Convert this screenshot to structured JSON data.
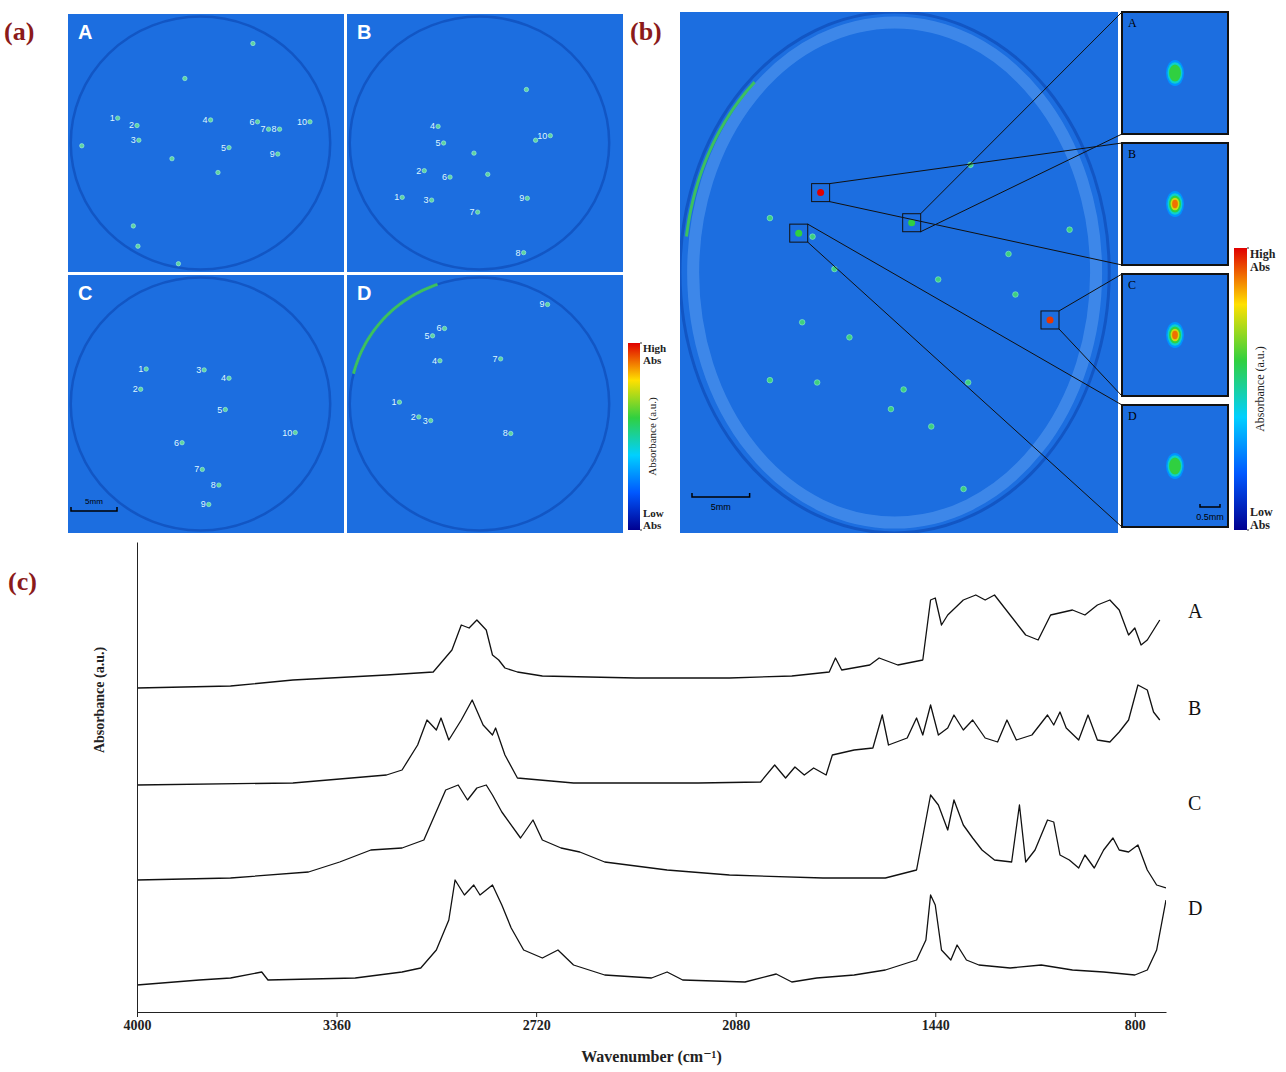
{
  "chart_data": [
    {
      "type": "particle_map",
      "panel": "(a)",
      "xlim": [
        0,
        30
      ],
      "ylim": [
        0,
        28
      ],
      "maps": [
        {
          "label": "A",
          "particles": [
            {
              "label": "1",
              "x": 5.4,
              "y": 11.3
            },
            {
              "label": "2",
              "x": 7.5,
              "y": 12.1
            },
            {
              "label": "3",
              "x": 7.7,
              "y": 13.7
            },
            {
              "label": "4",
              "x": 15.5,
              "y": 11.5
            },
            {
              "label": "5",
              "x": 17.5,
              "y": 14.5
            },
            {
              "label": "6",
              "x": 20.6,
              "y": 11.7
            },
            {
              "label": "7",
              "x": 21.8,
              "y": 12.5
            },
            {
              "label": "8",
              "x": 23,
              "y": 12.5
            },
            {
              "label": "9",
              "x": 22.8,
              "y": 15.2
            },
            {
              "label": "10",
              "x": 26.3,
              "y": 11.7
            },
            {
              "label": null,
              "x": 20.1,
              "y": 3.2
            },
            {
              "label": null,
              "x": 12.7,
              "y": 7
            },
            {
              "label": null,
              "x": 1.5,
              "y": 14.3
            },
            {
              "label": null,
              "x": 11.3,
              "y": 15.7
            },
            {
              "label": null,
              "x": 16.3,
              "y": 17.2
            },
            {
              "label": null,
              "x": 7.1,
              "y": 23
            },
            {
              "label": null,
              "x": 7.6,
              "y": 25.2
            },
            {
              "label": null,
              "x": 12,
              "y": 27.1
            }
          ]
        },
        {
          "label": "B",
          "particles": [
            {
              "label": "1",
              "x": 6,
              "y": 19.9
            },
            {
              "label": "2",
              "x": 8.4,
              "y": 17
            },
            {
              "label": "3",
              "x": 9.2,
              "y": 20.2
            },
            {
              "label": "4",
              "x": 9.9,
              "y": 12.2
            },
            {
              "label": "5",
              "x": 10.5,
              "y": 14
            },
            {
              "label": "6",
              "x": 11.2,
              "y": 17.7
            },
            {
              "label": "7",
              "x": 14.2,
              "y": 21.5
            },
            {
              "label": "8",
              "x": 19.2,
              "y": 25.9
            },
            {
              "label": "9",
              "x": 19.6,
              "y": 20
            },
            {
              "label": "10",
              "x": 22.1,
              "y": 13.2
            },
            {
              "label": null,
              "x": 19.5,
              "y": 8.2
            },
            {
              "label": null,
              "x": 13.8,
              "y": 15.1
            },
            {
              "label": null,
              "x": 15.3,
              "y": 17.4
            },
            {
              "label": null,
              "x": 20.5,
              "y": 13.7
            }
          ]
        },
        {
          "label": "C",
          "particles": [
            {
              "label": "1",
              "x": 8.5,
              "y": 10.2
            },
            {
              "label": "2",
              "x": 7.9,
              "y": 12.4
            },
            {
              "label": "3",
              "x": 14.8,
              "y": 10.3
            },
            {
              "label": "4",
              "x": 17.5,
              "y": 11.2
            },
            {
              "label": "5",
              "x": 17.1,
              "y": 14.6
            },
            {
              "label": "6",
              "x": 12.4,
              "y": 18.2
            },
            {
              "label": "7",
              "x": 14.6,
              "y": 21.1
            },
            {
              "label": "8",
              "x": 16.4,
              "y": 22.8
            },
            {
              "label": "9",
              "x": 15.3,
              "y": 24.9
            },
            {
              "label": "10",
              "x": 24.7,
              "y": 17.1
            }
          ]
        },
        {
          "label": "D",
          "particles": [
            {
              "label": "1",
              "x": 5.7,
              "y": 13.8
            },
            {
              "label": "2",
              "x": 7.8,
              "y": 15.4
            },
            {
              "label": "3",
              "x": 9.1,
              "y": 15.8
            },
            {
              "label": "4",
              "x": 10.1,
              "y": 9.3
            },
            {
              "label": "5",
              "x": 9.3,
              "y": 6.6
            },
            {
              "label": "6",
              "x": 10.6,
              "y": 5.8
            },
            {
              "label": "7",
              "x": 16.7,
              "y": 9.1
            },
            {
              "label": "8",
              "x": 17.8,
              "y": 17.2
            },
            {
              "label": "9",
              "x": 21.8,
              "y": 3.2
            }
          ]
        }
      ],
      "scale_bar": {
        "value": 5,
        "label": "5mm"
      },
      "colorbar": {
        "title": "Absorbance (a.u.)",
        "range": [
          0,
          1
        ],
        "ticks": [
          {
            "value": 1,
            "label": "High Abs"
          },
          {
            "value": 0,
            "label": "Low Abs"
          }
        ]
      }
    },
    {
      "type": "particle_map",
      "panel": "(b)",
      "xlim": [
        0,
        38
      ],
      "ylim": [
        0,
        45
      ],
      "particles": [
        {
          "x": 7.8,
          "y": 17.8
        },
        {
          "x": 11.5,
          "y": 19.4
        },
        {
          "x": 13.4,
          "y": 22.2
        },
        {
          "x": 10.6,
          "y": 26.8
        },
        {
          "x": 14.7,
          "y": 28.1
        },
        {
          "x": 7.8,
          "y": 31.8
        },
        {
          "x": 11.9,
          "y": 32
        },
        {
          "x": 18.3,
          "y": 34.3
        },
        {
          "x": 21.8,
          "y": 35.8
        },
        {
          "x": 25,
          "y": 32
        },
        {
          "x": 29.1,
          "y": 24.4
        },
        {
          "x": 28.5,
          "y": 20.9
        },
        {
          "x": 22.4,
          "y": 23.1
        },
        {
          "x": 25.2,
          "y": 13.2
        },
        {
          "x": 33.8,
          "y": 18.8
        },
        {
          "x": 24.6,
          "y": 41.2
        },
        {
          "x": 19.4,
          "y": 32.6
        }
      ],
      "insets": [
        {
          "label": "A",
          "x": 20.1,
          "y": 18.2,
          "abs": 0.6
        },
        {
          "label": "B",
          "x": 12.2,
          "y": 15.6,
          "abs": 1
        },
        {
          "label": "C",
          "x": 32.1,
          "y": 26.6,
          "abs": 0.95
        },
        {
          "label": "D",
          "x": 10.3,
          "y": 19.1,
          "abs": 0.6
        }
      ],
      "scale_bar": {
        "value": 5,
        "label": "5mm"
      },
      "inset_scale_bar": {
        "value": 0.5,
        "label": "0.5mm"
      },
      "colorbar": {
        "title": "Absorbance (a.u.)",
        "range": [
          0,
          1
        ],
        "ticks": [
          {
            "value": 1,
            "label": "High Abs"
          },
          {
            "value": 0,
            "label": "Low Abs"
          }
        ]
      }
    },
    {
      "type": "line",
      "panel": "(c)",
      "xlabel": "Wavenumber (cm⁻¹)",
      "ylabel": "Absorbance (a.u.)",
      "xlim": [
        4000,
        700
      ],
      "ylim": [
        0,
        470
      ],
      "xticks": [
        4000,
        3360,
        2720,
        2080,
        1440,
        800
      ],
      "tick_labels": "x",
      "series": [
        {
          "name": "A",
          "color": "#111111",
          "x": [
            4000,
            3700,
            3500,
            3200,
            3050,
            2990,
            2960,
            2935,
            2910,
            2880,
            2860,
            2840,
            2820,
            2780,
            2700,
            2400,
            2100,
            1900,
            1780,
            1760,
            1740,
            1650,
            1620,
            1560,
            1480,
            1455,
            1440,
            1420,
            1400,
            1350,
            1310,
            1280,
            1250,
            1200,
            1150,
            1110,
            1070,
            1000,
            960,
            920,
            880,
            850,
            820,
            800,
            780,
            760,
            740,
            720
          ],
          "values": [
            324,
            326,
            332,
            337,
            340,
            362,
            387,
            384,
            392,
            382,
            357,
            352,
            344,
            340,
            336,
            334,
            334,
            336,
            340,
            354,
            342,
            347,
            354,
            347,
            352,
            412,
            414,
            387,
            397,
            412,
            417,
            412,
            417,
            397,
            377,
            372,
            397,
            402,
            397,
            407,
            412,
            402,
            377,
            384,
            367,
            372,
            382,
            392
          ]
        },
        {
          "name": "B",
          "color": "#111111",
          "x": [
            4000,
            3500,
            3200,
            3150,
            3100,
            3070,
            3040,
            3025,
            3000,
            2960,
            2925,
            2890,
            2860,
            2850,
            2820,
            2780,
            2600,
            2200,
            2000,
            1955,
            1920,
            1890,
            1860,
            1830,
            1790,
            1770,
            1700,
            1640,
            1610,
            1590,
            1530,
            1500,
            1480,
            1455,
            1430,
            1400,
            1380,
            1350,
            1320,
            1280,
            1240,
            1210,
            1180,
            1130,
            1080,
            1060,
            1040,
            1020,
            980,
            950,
            920,
            880,
            850,
            820,
            790,
            760,
            740,
            720
          ],
          "values": [
            227,
            229,
            237,
            242,
            267,
            292,
            282,
            294,
            272,
            292,
            312,
            287,
            277,
            284,
            257,
            234,
            229,
            229,
            230,
            247,
            234,
            245,
            237,
            244,
            237,
            257,
            262,
            264,
            297,
            267,
            274,
            294,
            277,
            307,
            277,
            284,
            297,
            282,
            292,
            274,
            270,
            292,
            272,
            277,
            297,
            287,
            300,
            284,
            272,
            297,
            272,
            270,
            280,
            292,
            327,
            322,
            300,
            292
          ]
        },
        {
          "name": "C",
          "color": "#111111",
          "x": [
            4000,
            3700,
            3450,
            3350,
            3250,
            3150,
            3080,
            3010,
            2970,
            2940,
            2910,
            2880,
            2860,
            2830,
            2770,
            2730,
            2700,
            2640,
            2580,
            2500,
            2300,
            2100,
            1800,
            1600,
            1500,
            1455,
            1430,
            1400,
            1380,
            1350,
            1320,
            1290,
            1250,
            1195,
            1170,
            1150,
            1120,
            1080,
            1060,
            1040,
            1010,
            980,
            960,
            930,
            900,
            870,
            850,
            820,
            790,
            760,
            730,
            700
          ],
          "values": [
            132,
            134,
            140,
            150,
            162,
            164,
            172,
            222,
            227,
            212,
            224,
            227,
            217,
            200,
            174,
            192,
            172,
            164,
            160,
            150,
            142,
            137,
            134,
            134,
            142,
            217,
            207,
            182,
            212,
            187,
            174,
            162,
            152,
            150,
            207,
            150,
            162,
            192,
            190,
            157,
            152,
            144,
            157,
            144,
            162,
            174,
            162,
            160,
            167,
            142,
            127,
            124
          ]
        },
        {
          "name": "D",
          "color": "#111111",
          "x": [
            4000,
            3800,
            3700,
            3600,
            3580,
            3300,
            3150,
            3090,
            3040,
            3000,
            2980,
            2950,
            2920,
            2900,
            2880,
            2860,
            2830,
            2800,
            2760,
            2700,
            2650,
            2600,
            2500,
            2350,
            2300,
            2250,
            2050,
            1950,
            1900,
            1820,
            1700,
            1600,
            1500,
            1470,
            1455,
            1440,
            1420,
            1390,
            1370,
            1340,
            1300,
            1200,
            1100,
            1000,
            900,
            800,
            760,
            730,
            700
          ],
          "values": [
            27,
            32,
            34,
            40,
            32,
            34,
            40,
            44,
            62,
            92,
            132,
            117,
            127,
            117,
            122,
            127,
            107,
            84,
            62,
            54,
            62,
            47,
            37,
            34,
            40,
            32,
            30,
            38,
            30,
            34,
            37,
            42,
            52,
            72,
            117,
            107,
            62,
            52,
            67,
            52,
            47,
            44,
            47,
            42,
            40,
            37,
            42,
            62,
            112
          ]
        }
      ]
    }
  ]
}
